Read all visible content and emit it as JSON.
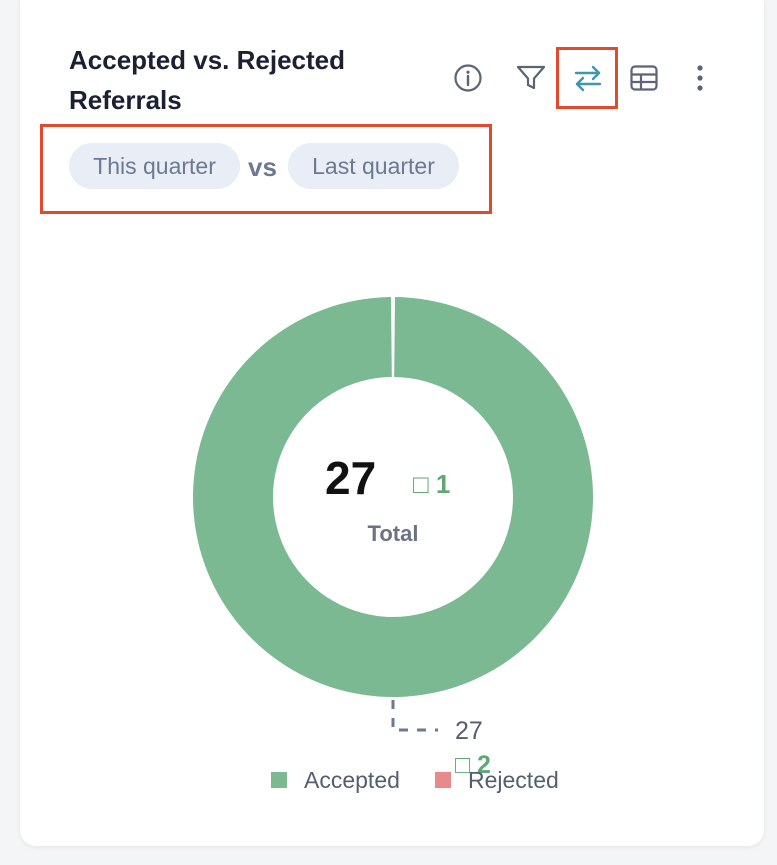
{
  "header": {
    "title": "Accepted vs. Rejected Referrals"
  },
  "toolbar": {
    "info_icon": "info-icon",
    "filter_icon": "filter-icon",
    "compare_icon": "swap-arrows-icon",
    "table_icon": "table-icon",
    "more_icon": "more-vertical-icon"
  },
  "comparison": {
    "current_label": "This quarter",
    "separator": "vs",
    "previous_label": "Last quarter"
  },
  "colors": {
    "accepted": "#7bb993",
    "rejected": "#e98a8a",
    "highlight": "#e04a2f",
    "compare_active": "#3d97ae",
    "delta": "#5fa876"
  },
  "chart_data": {
    "type": "pie",
    "donut": true,
    "categories": [
      "Accepted",
      "Rejected"
    ],
    "values": [
      27,
      0
    ],
    "center": {
      "value": "27",
      "delta": "□ 1",
      "label": "Total"
    },
    "callout": {
      "value": "27",
      "delta": "□ 2"
    },
    "legend": [
      {
        "name": "Accepted",
        "color": "#7bb993"
      },
      {
        "name": "Rejected",
        "color": "#e98a8a"
      }
    ],
    "legend_position": "bottom"
  }
}
